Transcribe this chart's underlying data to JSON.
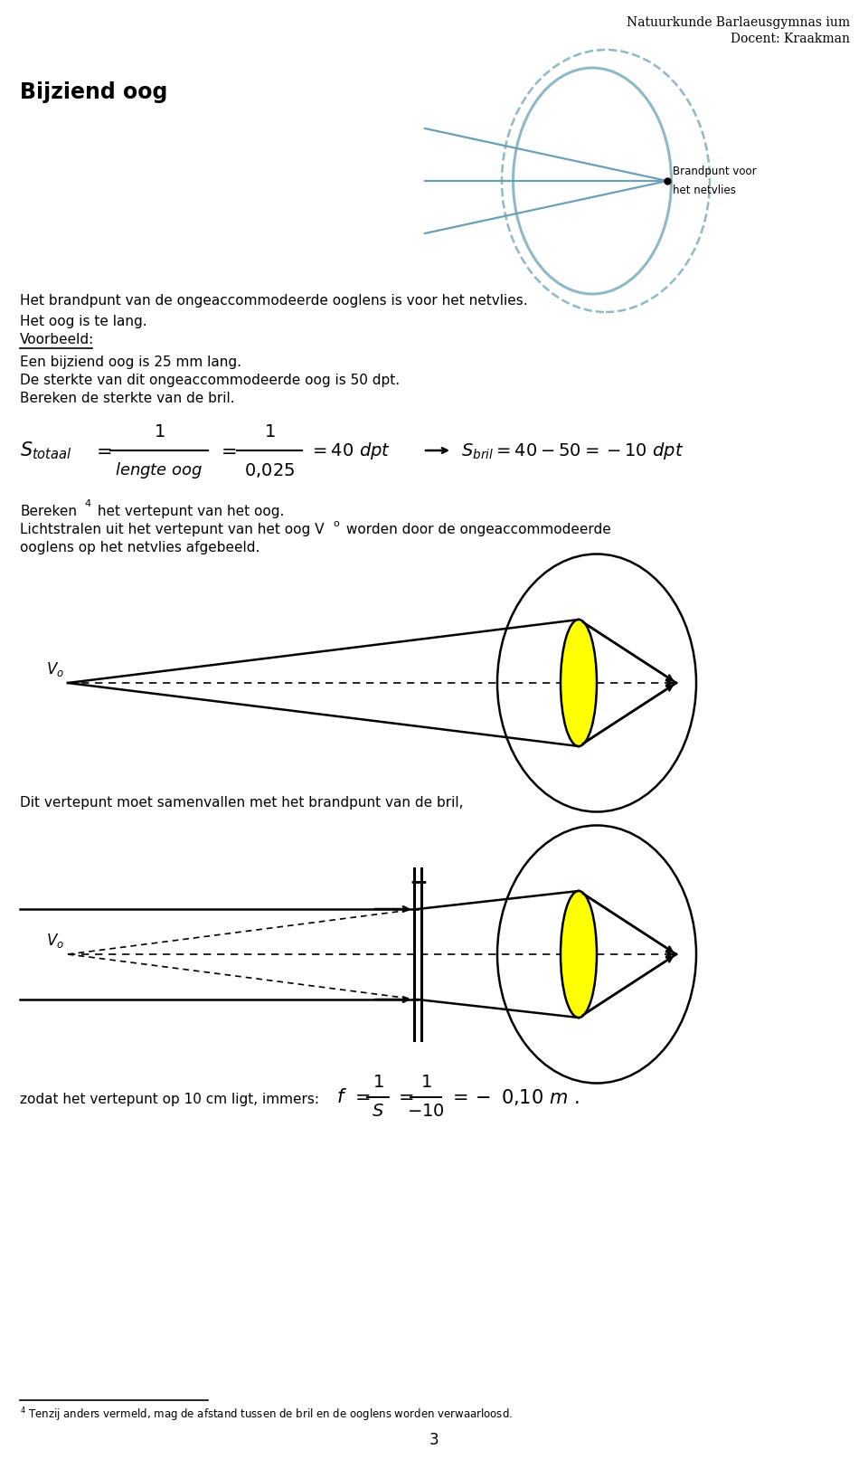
{
  "background_color": "#ffffff",
  "text_color": "#000000",
  "lens_color": "#ffff00",
  "eye_outer_color": "#8fb8c8",
  "header1": "Natuurkunde Barlaeusgymnas ium",
  "header2": "Docent: Kraakman",
  "title": "Bijziend oog",
  "text1": "Het brandpunt van de ongeaccommodeerde ooglens is voor het netvlies.",
  "text2": "Het oog is te lang.",
  "text3": "Voorbeeld:",
  "text4": "Een bijziend oog is 25 mm lang.",
  "text5": "De sterkte van dit ongeaccommodeerde oog is 50 dpt.",
  "text6": "Bereken de sterkte van de bril.",
  "text9": "Dit vertepunt moet samenvallen met het brandpunt van de bril,",
  "text10": "zodat het vertepunt op 10 cm ligt, immers:",
  "footnote": "Tenzij anders vermeld, mag de afstand tussen de bril en de ooglens worden verwaarloosd."
}
